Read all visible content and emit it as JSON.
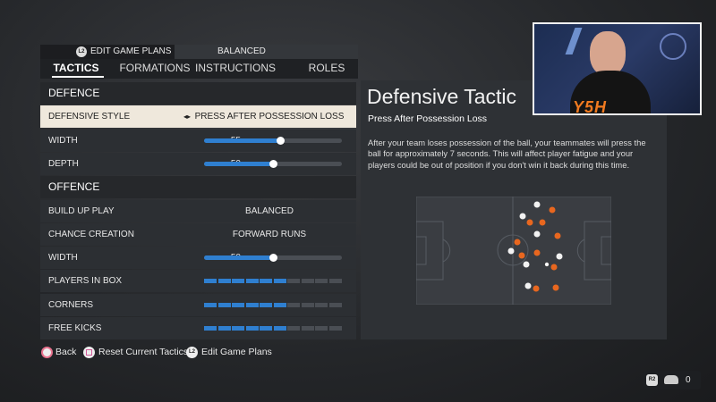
{
  "header": {
    "hint_icon": "L2",
    "edit_game_plans": "EDIT GAME PLANS",
    "game_plan": "BALANCED"
  },
  "tabs": [
    "TACTICS",
    "FORMATIONS",
    "INSTRUCTIONS",
    "ROLES"
  ],
  "sections": [
    {
      "title": "DEFENCE",
      "rows": [
        {
          "label": "DEFENSIVE STYLE",
          "value": "PRESS AFTER POSSESSION LOSS"
        },
        {
          "label": "WIDTH",
          "value": 55
        },
        {
          "label": "DEPTH",
          "value": 50
        }
      ]
    },
    {
      "title": "OFFENCE",
      "rows": [
        {
          "label": "BUILD UP PLAY",
          "value": "BALANCED"
        },
        {
          "label": "CHANCE CREATION",
          "value": "FORWARD RUNS"
        },
        {
          "label": "WIDTH",
          "value": 50
        },
        {
          "label": "PLAYERS IN BOX"
        },
        {
          "label": "CORNERS"
        },
        {
          "label": "FREE KICKS"
        }
      ]
    }
  ],
  "detail": {
    "title": "Defensive Tactic",
    "subtitle": "Press After Possession Loss",
    "description": "After your team loses possession of the ball, your teammates will press the ball for approximately 7 seconds. This will affect player fatigue and your players could be out of position if you don't win it back during this time."
  },
  "footer": {
    "buttons": [
      {
        "label": "Back"
      },
      {
        "label": "Reset Current Tactics"
      },
      {
        "icon": "L2",
        "label": "Edit Game Plans"
      }
    ]
  },
  "status": {
    "icon": "R2",
    "count": 0
  },
  "webcam": {
    "logo": "Y5H"
  }
}
